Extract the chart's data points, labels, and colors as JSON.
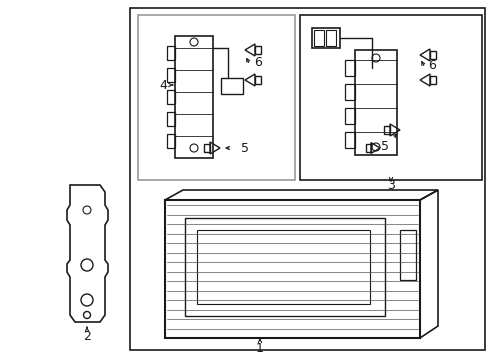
{
  "bg_color": "#ffffff",
  "line_color": "#1a1a1a",
  "gray_color": "#999999",
  "light_gray": "#cccccc",
  "figsize": [
    4.89,
    3.6
  ],
  "dpi": 100
}
